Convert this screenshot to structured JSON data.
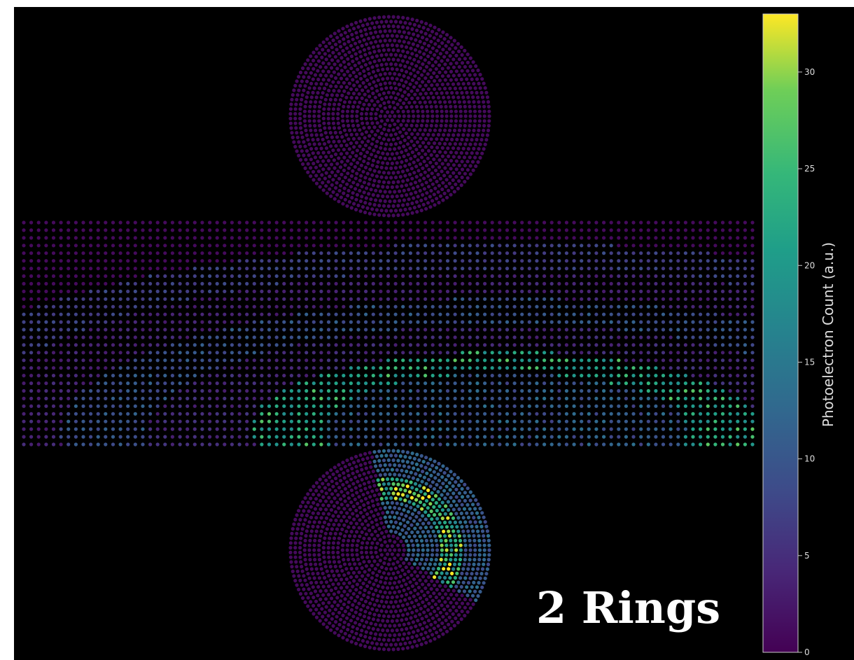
{
  "chart_data": {
    "type": "scatter",
    "title": "",
    "overlay_label": "2 Rings",
    "colorbar": {
      "label": "Photoelectron Count (a.u.)",
      "range": [
        0,
        33
      ],
      "ticks": [
        0,
        5,
        10,
        15,
        20,
        25,
        30
      ],
      "colormap": "viridis"
    },
    "background": "#000000",
    "regions": [
      {
        "name": "top cap",
        "shape": "disk",
        "rings": 21
      },
      {
        "name": "barrel",
        "shape": "rectangle",
        "columns": 99,
        "rows": 30
      },
      {
        "name": "bottom cap",
        "shape": "disk",
        "rings": 21
      }
    ],
    "baseline_count": 1,
    "hit_rings": [
      {
        "region": "barrel",
        "center": [
          0.66,
          0.95
        ],
        "radius": 0.55,
        "width": 0.06,
        "peak": 12,
        "fill": 6
      },
      {
        "region": "barrel",
        "center": [
          0.66,
          0.95
        ],
        "radius": 0.8,
        "width": 0.06,
        "peak": 9,
        "fill": 5
      },
      {
        "region": "barrel",
        "center": [
          0.66,
          0.93
        ],
        "radius": 0.3,
        "width": 0.05,
        "peak": 28,
        "fill": 14
      },
      {
        "region": "bottom cap",
        "center": [
          0.45,
          0.55
        ],
        "radius": 0.45,
        "width": 0.08,
        "peak": 30,
        "fill": 12
      }
    ]
  }
}
